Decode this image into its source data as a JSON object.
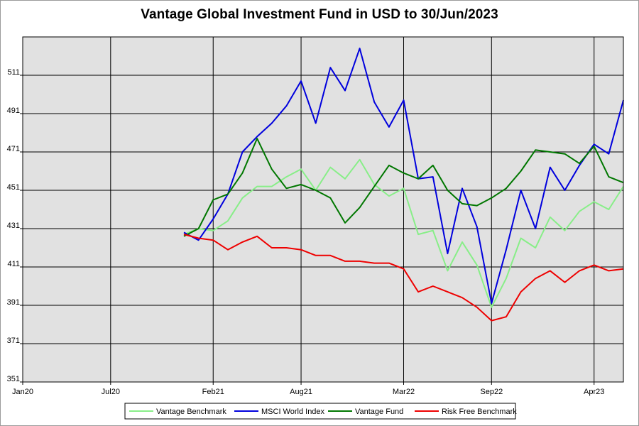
{
  "chart_data": {
    "type": "line",
    "title": "Vantage Global Investment Fund in USD to 30/Jun/2023",
    "xlabel": "",
    "ylabel": "",
    "grid": true,
    "legend_position": "bottom",
    "x_axis": {
      "ticks": [
        "Jan20",
        "Jul20",
        "Feb21",
        "Aug21",
        "Mar22",
        "Sep22",
        "Apr23"
      ],
      "range": [
        "2020-01",
        "2023-06"
      ]
    },
    "y_axis": {
      "ticks": [
        351,
        371,
        391,
        411,
        431,
        451,
        471,
        491,
        511
      ],
      "range": [
        351,
        531
      ]
    },
    "x": [
      "2020-12",
      "2021-01",
      "2021-02",
      "2021-03",
      "2021-04",
      "2021-05",
      "2021-06",
      "2021-07",
      "2021-08",
      "2021-09",
      "2021-10",
      "2021-11",
      "2021-12",
      "2022-01",
      "2022-02",
      "2022-03",
      "2022-04",
      "2022-05",
      "2022-06",
      "2022-07",
      "2022-08",
      "2022-09",
      "2022-10",
      "2022-11",
      "2022-12",
      "2023-01",
      "2023-02",
      "2023-03",
      "2023-04",
      "2023-05",
      "2023-06"
    ],
    "series": [
      {
        "name": "Vantage Benchmark",
        "color": "#88ee88",
        "values": [
          428,
          431,
          430,
          435,
          447,
          453,
          453,
          458,
          462,
          451,
          463,
          457,
          467,
          454,
          448,
          452,
          428,
          430,
          409,
          424,
          412,
          390,
          405,
          426,
          421,
          437,
          430,
          440,
          445,
          441,
          453
        ]
      },
      {
        "name": "MSCI World Index",
        "color": "#0000dd",
        "values": [
          429,
          425,
          436,
          449,
          471,
          479,
          486,
          495,
          508,
          486,
          515,
          503,
          525,
          497,
          484,
          498,
          457,
          458,
          418,
          452,
          432,
          392,
          420,
          451,
          431,
          463,
          451,
          464,
          475,
          470,
          498
        ]
      },
      {
        "name": "Vantage Fund",
        "color": "#007700",
        "values": [
          427,
          431,
          446,
          449,
          460,
          478,
          462,
          452,
          454,
          451,
          447,
          434,
          442,
          453,
          464,
          460,
          457,
          464,
          451,
          444,
          443,
          447,
          452,
          461,
          472,
          471,
          470,
          465,
          474,
          458,
          455
        ]
      },
      {
        "name": "Risk Free Benchmark",
        "color": "#ee0000",
        "values": [
          428,
          426,
          425,
          420,
          424,
          427,
          421,
          421,
          420,
          417,
          417,
          414,
          414,
          413,
          413,
          410,
          398,
          401,
          398,
          395,
          390,
          383,
          385,
          398,
          405,
          409,
          403,
          409,
          412,
          409,
          410
        ]
      }
    ]
  }
}
